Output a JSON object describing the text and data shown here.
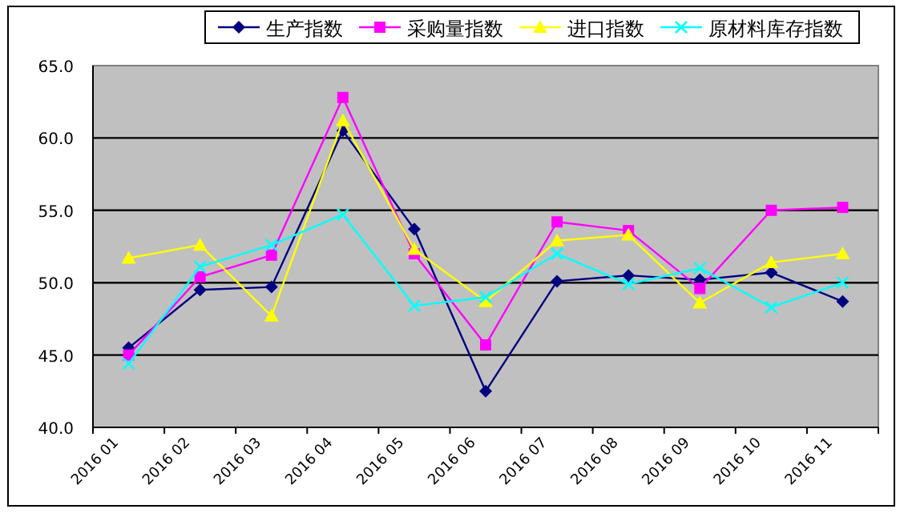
{
  "chart_data": {
    "type": "line",
    "categories": [
      "2016 01",
      "2016 02",
      "2016 03",
      "2016 04",
      "2016 05",
      "2016 06",
      "2016 07",
      "2016 08",
      "2016 09",
      "2016 10",
      "2016 11"
    ],
    "series": [
      {
        "name": "生产指数",
        "color": "#000080",
        "marker": "diamond",
        "values": [
          45.5,
          49.5,
          49.7,
          60.5,
          53.7,
          42.5,
          50.1,
          50.5,
          50.2,
          50.7,
          48.7
        ]
      },
      {
        "name": "采购量指数",
        "color": "#ff00ff",
        "marker": "square",
        "values": [
          45.0,
          50.4,
          51.9,
          62.8,
          52.0,
          45.7,
          54.2,
          53.6,
          49.6,
          55.0,
          55.2
        ]
      },
      {
        "name": "进口指数",
        "color": "#ffff00",
        "marker": "triangle",
        "values": [
          51.7,
          52.6,
          47.7,
          61.2,
          52.3,
          48.7,
          52.9,
          53.3,
          48.6,
          51.4,
          52.0
        ]
      },
      {
        "name": "原材料库存指数",
        "color": "#00ffff",
        "marker": "cross",
        "values": [
          44.4,
          51.1,
          52.6,
          54.7,
          48.4,
          49.0,
          52.0,
          49.9,
          51.0,
          48.3,
          50.0
        ]
      }
    ],
    "ylim": [
      40,
      65
    ],
    "yticks": [
      {
        "value": 40,
        "label": "40.0"
      },
      {
        "value": 45,
        "label": "45.0"
      },
      {
        "value": 50,
        "label": "50.0"
      },
      {
        "value": 55,
        "label": "55.0"
      },
      {
        "value": 60,
        "label": "60.0"
      },
      {
        "value": 65,
        "label": "65.0"
      }
    ],
    "grid": "y",
    "legend": "top"
  }
}
